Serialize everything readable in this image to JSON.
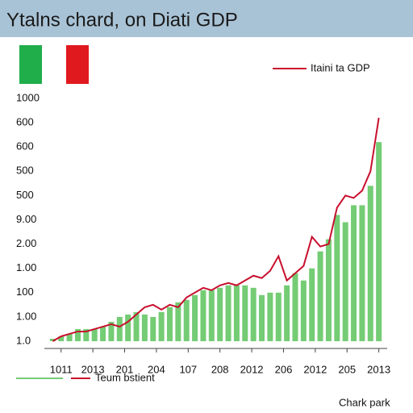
{
  "chart_data": {
    "type": "bar",
    "title": "Ytalns chard, on Diati GDP",
    "series": [
      {
        "name": "Teum bstient",
        "type": "bar",
        "color": "#74cc74",
        "values": [
          0.1,
          0.2,
          0.3,
          0.5,
          0.5,
          0.5,
          0.6,
          0.8,
          1.0,
          1.1,
          1.2,
          1.1,
          1.0,
          1.2,
          1.4,
          1.6,
          1.7,
          1.9,
          2.1,
          2.1,
          2.2,
          2.3,
          2.3,
          2.3,
          2.2,
          1.9,
          2.0,
          2.0,
          2.3,
          2.8,
          2.5,
          3.0,
          3.7,
          4.2,
          5.2,
          4.9,
          5.6,
          5.6,
          6.4,
          8.2
        ]
      },
      {
        "name": "Itaini ta GDP",
        "type": "line",
        "color": "#c8102e",
        "values": [
          0.0,
          0.2,
          0.3,
          0.4,
          0.4,
          0.5,
          0.6,
          0.7,
          0.6,
          0.8,
          1.1,
          1.4,
          1.5,
          1.3,
          1.5,
          1.4,
          1.8,
          2.0,
          2.2,
          2.1,
          2.3,
          2.4,
          2.3,
          2.5,
          2.7,
          2.6,
          2.9,
          3.5,
          2.5,
          2.8,
          3.1,
          4.3,
          3.9,
          4.0,
          5.5,
          6.0,
          5.9,
          6.2,
          7.0,
          9.2
        ]
      }
    ],
    "xlim": [
      -1,
      40
    ],
    "xticks": [
      {
        "value": 1,
        "label": "1011"
      },
      {
        "value": 4.8,
        "label": "2013"
      },
      {
        "value": 8.6,
        "label": "201"
      },
      {
        "value": 12.4,
        "label": "204"
      },
      {
        "value": 16.2,
        "label": "107"
      },
      {
        "value": 20,
        "label": "208"
      },
      {
        "value": 23.8,
        "label": "2012"
      },
      {
        "value": 27.6,
        "label": "206"
      },
      {
        "value": 31.4,
        "label": "2012"
      },
      {
        "value": 35.2,
        "label": "205"
      },
      {
        "value": 39,
        "label": "2013"
      }
    ],
    "ylim": [
      0,
      10
    ],
    "yticks": [
      {
        "value": 0,
        "label": "1.0"
      },
      {
        "value": 1,
        "label": "1.00"
      },
      {
        "value": 2,
        "label": "100"
      },
      {
        "value": 3,
        "label": "1.00"
      },
      {
        "value": 4,
        "label": "2.00"
      },
      {
        "value": 5,
        "label": "9.00"
      },
      {
        "value": 6,
        "label": "500"
      },
      {
        "value": 7,
        "label": "500"
      },
      {
        "value": 8,
        "label": "600"
      },
      {
        "value": 9,
        "label": "600"
      },
      {
        "value": 10,
        "label": "1000"
      }
    ],
    "footer": "Chark park"
  }
}
